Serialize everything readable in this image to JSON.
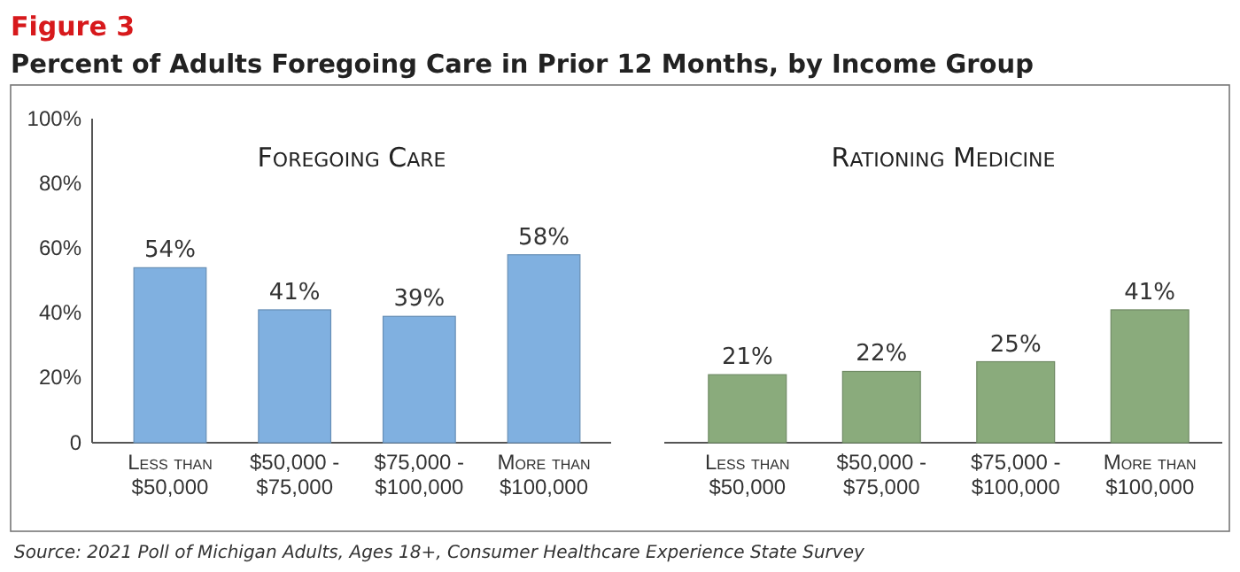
{
  "chart_data": [
    {
      "type": "bar",
      "title": "Foregoing Care",
      "annotations": [
        "Figure 3",
        "Percent of Adults Foregoing Care in Prior 12 Months, by Income Group"
      ],
      "categories": [
        "Less than $50,000",
        "$50,000 - $75,000",
        "$75,000 - $100,000",
        "More than $100,000"
      ],
      "values": [
        54,
        41,
        39,
        58
      ],
      "value_labels": [
        "54%",
        "41%",
        "39%",
        "58%"
      ],
      "color": "#80b0e0",
      "ylim": [
        0,
        100
      ],
      "yticks": [
        {
          "value": 0,
          "label": "0"
        },
        {
          "value": 20,
          "label": "20%"
        },
        {
          "value": 40,
          "label": "40%"
        },
        {
          "value": 60,
          "label": "60%"
        },
        {
          "value": 80,
          "label": "80%"
        },
        {
          "value": 100,
          "label": "100%"
        }
      ]
    },
    {
      "type": "bar",
      "title": "Rationing Medicine",
      "annotations": [
        "Source: 2021 Poll of Michigan Adults, Ages 18+, Consumer Healthcare Experience State Survey"
      ],
      "categories": [
        "Less than $50,000",
        "$50,000 - $75,000",
        "$75,000 - $100,000",
        "More than $100,000"
      ],
      "values": [
        21,
        22,
        25,
        41
      ],
      "value_labels": [
        "21%",
        "22%",
        "25%",
        "41%"
      ],
      "color": "#8aab7c",
      "ylim": [
        0,
        100
      ],
      "tick_labels": "x"
    }
  ]
}
